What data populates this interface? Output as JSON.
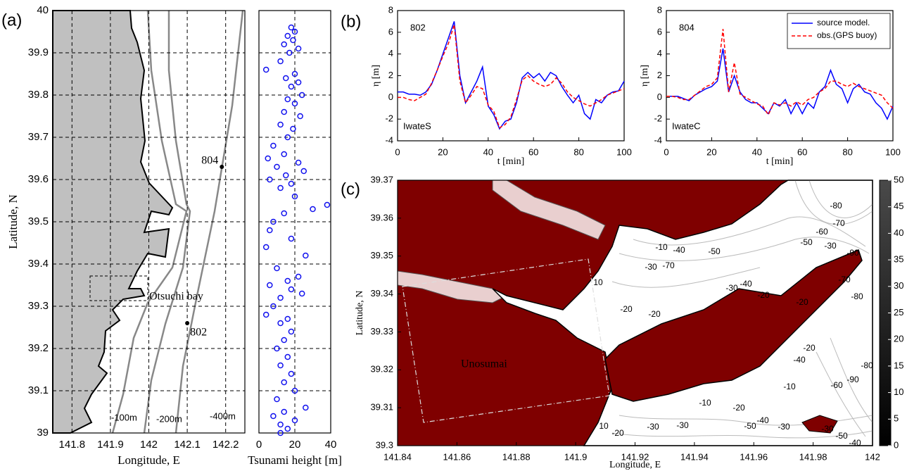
{
  "chart_data": [
    {
      "type": "map",
      "label": "(a)",
      "xlabel": "Longitude, E",
      "ylabel": "Latitude, N",
      "xlim": [
        141.75,
        142.25
      ],
      "ylim": [
        39,
        40
      ],
      "xticks": [
        141.8,
        141.9,
        142,
        142.1,
        142.2
      ],
      "yticks": [
        39,
        39.1,
        39.2,
        39.3,
        39.4,
        39.5,
        39.6,
        39.7,
        39.8,
        39.9,
        40
      ],
      "grid": true,
      "stations": [
        {
          "name": "804",
          "lon": 142.19,
          "lat": 39.63
        },
        {
          "name": "802",
          "lon": 142.1,
          "lat": 39.26
        }
      ],
      "annotations": [
        "Otsuchi bay",
        "-100m",
        "-200m",
        "-400m"
      ]
    },
    {
      "type": "scatter",
      "xlabel": "Tsunami height [m]",
      "xlim": [
        0,
        40
      ],
      "xticks": [
        0,
        20,
        40
      ],
      "ylim": [
        39,
        40
      ],
      "yticks": [
        39,
        39.1,
        39.2,
        39.3,
        39.4,
        39.5,
        39.6,
        39.7,
        39.8,
        39.9,
        40
      ],
      "grid": true,
      "color": "#1010ee",
      "x": [
        18,
        20,
        16,
        19,
        14,
        22,
        17,
        12,
        4,
        20,
        15,
        22,
        18,
        24,
        16,
        20,
        14,
        23,
        12,
        19,
        16,
        8,
        14,
        5,
        22,
        10,
        25,
        15,
        6,
        18,
        12,
        20,
        38,
        30,
        14,
        8,
        6,
        18,
        4,
        26,
        10,
        22,
        16,
        6,
        18,
        24,
        12,
        8,
        4,
        16,
        12,
        18,
        14,
        10,
        16,
        12,
        18,
        14,
        20,
        10,
        26,
        14,
        8,
        20,
        12,
        16,
        12
      ],
      "y": [
        39.96,
        39.95,
        39.94,
        39.93,
        39.92,
        39.91,
        39.9,
        39.88,
        39.86,
        39.85,
        39.84,
        39.83,
        39.82,
        39.8,
        39.79,
        39.78,
        39.76,
        39.75,
        39.73,
        39.72,
        39.7,
        39.68,
        39.66,
        39.65,
        39.64,
        39.63,
        39.62,
        39.61,
        39.6,
        39.59,
        39.58,
        39.56,
        39.54,
        39.53,
        39.52,
        39.5,
        39.48,
        39.46,
        39.44,
        39.42,
        39.39,
        39.37,
        39.36,
        39.35,
        39.34,
        39.33,
        39.32,
        39.3,
        39.28,
        39.27,
        39.26,
        39.24,
        39.22,
        39.2,
        39.18,
        39.16,
        39.14,
        39.12,
        39.1,
        39.08,
        39.06,
        39.05,
        39.04,
        39.03,
        39.02,
        39.01,
        39.0
      ]
    },
    {
      "type": "line",
      "label": "(b)",
      "xlabel": "t [min]",
      "ylabel": "η [m]",
      "xlim": [
        0,
        100
      ],
      "xticks": [
        0,
        20,
        40,
        60,
        80,
        100
      ],
      "ylim": [
        -4,
        8
      ],
      "yticks": [
        -4,
        -2,
        0,
        2,
        4,
        6,
        8
      ],
      "annotations": [
        "802",
        "IwateS"
      ],
      "x": [
        0,
        2.5,
        5,
        7.5,
        10,
        12.5,
        15,
        17.5,
        20,
        22.5,
        25,
        27.5,
        30,
        32.5,
        35,
        37.5,
        40,
        42.5,
        45,
        47.5,
        50,
        52.5,
        55,
        57.5,
        60,
        62.5,
        65,
        67.5,
        70,
        72.5,
        75,
        77.5,
        80,
        82.5,
        85,
        87.5,
        90,
        92.5,
        95,
        97.5,
        100
      ],
      "series": [
        {
          "color": "#0000ff",
          "linestyle": "solid",
          "values": [
            0.5,
            0.5,
            0.3,
            0.3,
            0.2,
            0.5,
            1.2,
            2.5,
            4,
            5.5,
            7.0,
            2,
            -0.5,
            0.5,
            1.5,
            2.8,
            -0.8,
            -1.6,
            -2.9,
            -2.2,
            -2.0,
            -0.5,
            1.8,
            2.3,
            1.8,
            2.2,
            1.5,
            2.3,
            2.0,
            1.0,
            0.2,
            -0.5,
            0.2,
            -1.5,
            -2.0,
            -0.2,
            -0.5,
            0.2,
            0.5,
            0.6,
            1.5
          ]
        },
        {
          "color": "#ff0000",
          "linestyle": "dashed",
          "values": [
            0,
            0,
            -0.2,
            -0.3,
            0,
            0.3,
            1.3,
            2.5,
            3.8,
            5,
            6.7,
            1.5,
            -0.5,
            0.2,
            1,
            0.8,
            -0.7,
            -1.3,
            -2.8,
            -2.5,
            -1.8,
            -0.2,
            1.6,
            2.0,
            1.5,
            1.2,
            1.0,
            1.2,
            1.8,
            1.3,
            0.5,
            0,
            -0.3,
            -0.6,
            -0.8,
            -0.5,
            -0.2,
            0.2,
            0.4,
            0.6,
            0.8
          ]
        }
      ]
    },
    {
      "type": "line",
      "xlabel": "t [min]",
      "ylabel": "η [m]",
      "xlim": [
        0,
        100
      ],
      "xticks": [
        0,
        20,
        40,
        60,
        80,
        100
      ],
      "ylim": [
        -4,
        8
      ],
      "yticks": [
        -4,
        -2,
        0,
        2,
        4,
        6,
        8
      ],
      "annotations": [
        "804",
        "IwateC"
      ],
      "x": [
        0,
        2.5,
        5,
        7.5,
        10,
        12.5,
        15,
        17.5,
        20,
        22.5,
        25,
        27.5,
        30,
        32.5,
        35,
        37.5,
        40,
        42.5,
        45,
        47.5,
        50,
        52.5,
        55,
        57.5,
        60,
        62.5,
        65,
        67.5,
        70,
        72.5,
        75,
        77.5,
        80,
        82.5,
        85,
        87.5,
        90,
        92.5,
        95,
        97.5,
        100
      ],
      "series": [
        {
          "name": "source model.",
          "color": "#0000ff",
          "linestyle": "solid",
          "values": [
            0.1,
            0.1,
            0.1,
            -0.1,
            -0.3,
            0.2,
            0.5,
            0.8,
            1,
            1.5,
            4.5,
            0.5,
            2.0,
            0.5,
            -0.2,
            -0.5,
            -0.5,
            -1.0,
            -1.5,
            -0.5,
            -0.8,
            -0.2,
            -1.5,
            -0.5,
            -1.5,
            -0.5,
            -1.0,
            0.5,
            1.0,
            2.5,
            1.2,
            0.8,
            -0.5,
            0.8,
            1.2,
            0.5,
            0.3,
            -0.5,
            -1.0,
            -2.0,
            -0.8
          ]
        },
        {
          "name": "obs.(GPS buoy)",
          "color": "#ff0000",
          "linestyle": "dashed",
          "values": [
            0.1,
            0.1,
            0,
            -0.2,
            -0.2,
            0.2,
            0.6,
            1.0,
            1.2,
            1.8,
            6.3,
            0.5,
            3.2,
            0.3,
            0,
            -0.3,
            -0.6,
            -0.8,
            -1.6,
            -0.5,
            -0.7,
            -0.5,
            -0.8,
            -0.4,
            -0.7,
            -0.2,
            0,
            0.5,
            0.8,
            1.5,
            1.5,
            1.2,
            1.0,
            1.3,
            1.0,
            0.8,
            0.6,
            0.4,
            0.2,
            -0.5,
            -1.0
          ]
        }
      ]
    },
    {
      "type": "map",
      "label": "(c)",
      "xlabel": "Longitude, E",
      "ylabel": "Latitude, N",
      "xlim": [
        141.84,
        142
      ],
      "xticks": [
        141.84,
        141.86,
        141.88,
        141.9,
        141.92,
        141.94,
        141.96,
        141.98,
        142
      ],
      "ylim": [
        39.3,
        39.37
      ],
      "yticks": [
        39.3,
        39.31,
        39.32,
        39.33,
        39.34,
        39.35,
        39.36,
        39.37
      ],
      "grid": false,
      "annotations": [
        "Unosumai"
      ],
      "contour_labels": [
        "-80",
        "-70",
        "-60",
        "-50",
        "-30",
        "-90",
        "-50",
        "-40",
        "-10",
        "-70",
        "-30",
        "10",
        "-20",
        "-30",
        "-40",
        "-20",
        "-80",
        "-70",
        "-20",
        "-20",
        "-20",
        "-40",
        "-60",
        "-90",
        "-80",
        "-10",
        "-10",
        "-20",
        "-30",
        "-50",
        "-40",
        "-30",
        "-30",
        "-50",
        "-40",
        "10",
        "-20",
        "-30"
      ],
      "colorbar": {
        "lim": [
          0,
          50
        ],
        "ticks": [
          0,
          5,
          10,
          15,
          20,
          25,
          30,
          35,
          40,
          45,
          50
        ]
      }
    }
  ]
}
